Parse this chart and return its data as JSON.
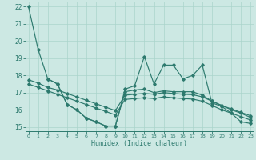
{
  "xlabel": "Humidex (Indice chaleur)",
  "xlim": [
    -0.3,
    23.3
  ],
  "ylim": [
    14.75,
    22.3
  ],
  "xticks": [
    0,
    1,
    2,
    3,
    4,
    5,
    6,
    7,
    8,
    9,
    10,
    11,
    12,
    13,
    14,
    15,
    16,
    17,
    18,
    19,
    20,
    21,
    22,
    23
  ],
  "yticks": [
    15,
    16,
    17,
    18,
    19,
    20,
    21,
    22
  ],
  "bg_color": "#cce8e3",
  "line_color": "#2d7a6e",
  "grid_color": "#aad4cc",
  "line1_x": [
    0,
    1,
    2,
    3,
    4,
    5,
    6,
    7,
    8,
    9,
    10,
    11,
    12,
    13,
    14,
    15,
    16,
    17,
    18,
    19,
    20,
    21,
    22,
    23
  ],
  "line1_y": [
    22.0,
    19.5,
    17.8,
    17.5,
    16.3,
    16.0,
    15.5,
    15.3,
    15.05,
    15.05,
    17.2,
    17.4,
    19.1,
    17.5,
    18.6,
    18.6,
    17.8,
    18.0,
    18.6,
    16.4,
    16.2,
    15.8,
    15.3,
    15.2
  ],
  "line2_x": [
    2,
    3,
    4,
    5,
    6,
    7,
    8,
    9,
    10,
    11,
    12,
    13,
    14,
    15,
    16,
    17,
    18,
    19,
    20,
    21,
    22,
    23
  ],
  "line2_y": [
    17.8,
    17.5,
    16.3,
    16.0,
    15.5,
    15.3,
    15.05,
    15.05,
    17.05,
    17.15,
    17.2,
    17.0,
    17.1,
    17.05,
    17.05,
    17.05,
    16.85,
    16.5,
    16.25,
    16.0,
    15.8,
    15.55
  ],
  "line3_x": [
    0,
    1,
    2,
    3,
    4,
    5,
    6,
    7,
    8,
    9,
    10,
    11,
    12,
    13,
    14,
    15,
    16,
    17,
    18,
    19,
    20,
    21,
    22,
    23
  ],
  "line3_y": [
    17.75,
    17.55,
    17.3,
    17.15,
    16.95,
    16.75,
    16.55,
    16.35,
    16.15,
    15.95,
    16.85,
    16.9,
    16.95,
    16.9,
    17.0,
    16.95,
    16.9,
    16.88,
    16.75,
    16.5,
    16.25,
    16.05,
    15.85,
    15.65
  ],
  "line4_x": [
    0,
    1,
    2,
    3,
    4,
    5,
    6,
    7,
    8,
    9,
    10,
    11,
    12,
    13,
    14,
    15,
    16,
    17,
    18,
    19,
    20,
    21,
    22,
    23
  ],
  "line4_y": [
    17.5,
    17.3,
    17.1,
    16.9,
    16.7,
    16.5,
    16.3,
    16.1,
    15.9,
    15.7,
    16.6,
    16.65,
    16.7,
    16.65,
    16.75,
    16.7,
    16.65,
    16.62,
    16.5,
    16.25,
    16.0,
    15.8,
    15.6,
    15.4
  ]
}
